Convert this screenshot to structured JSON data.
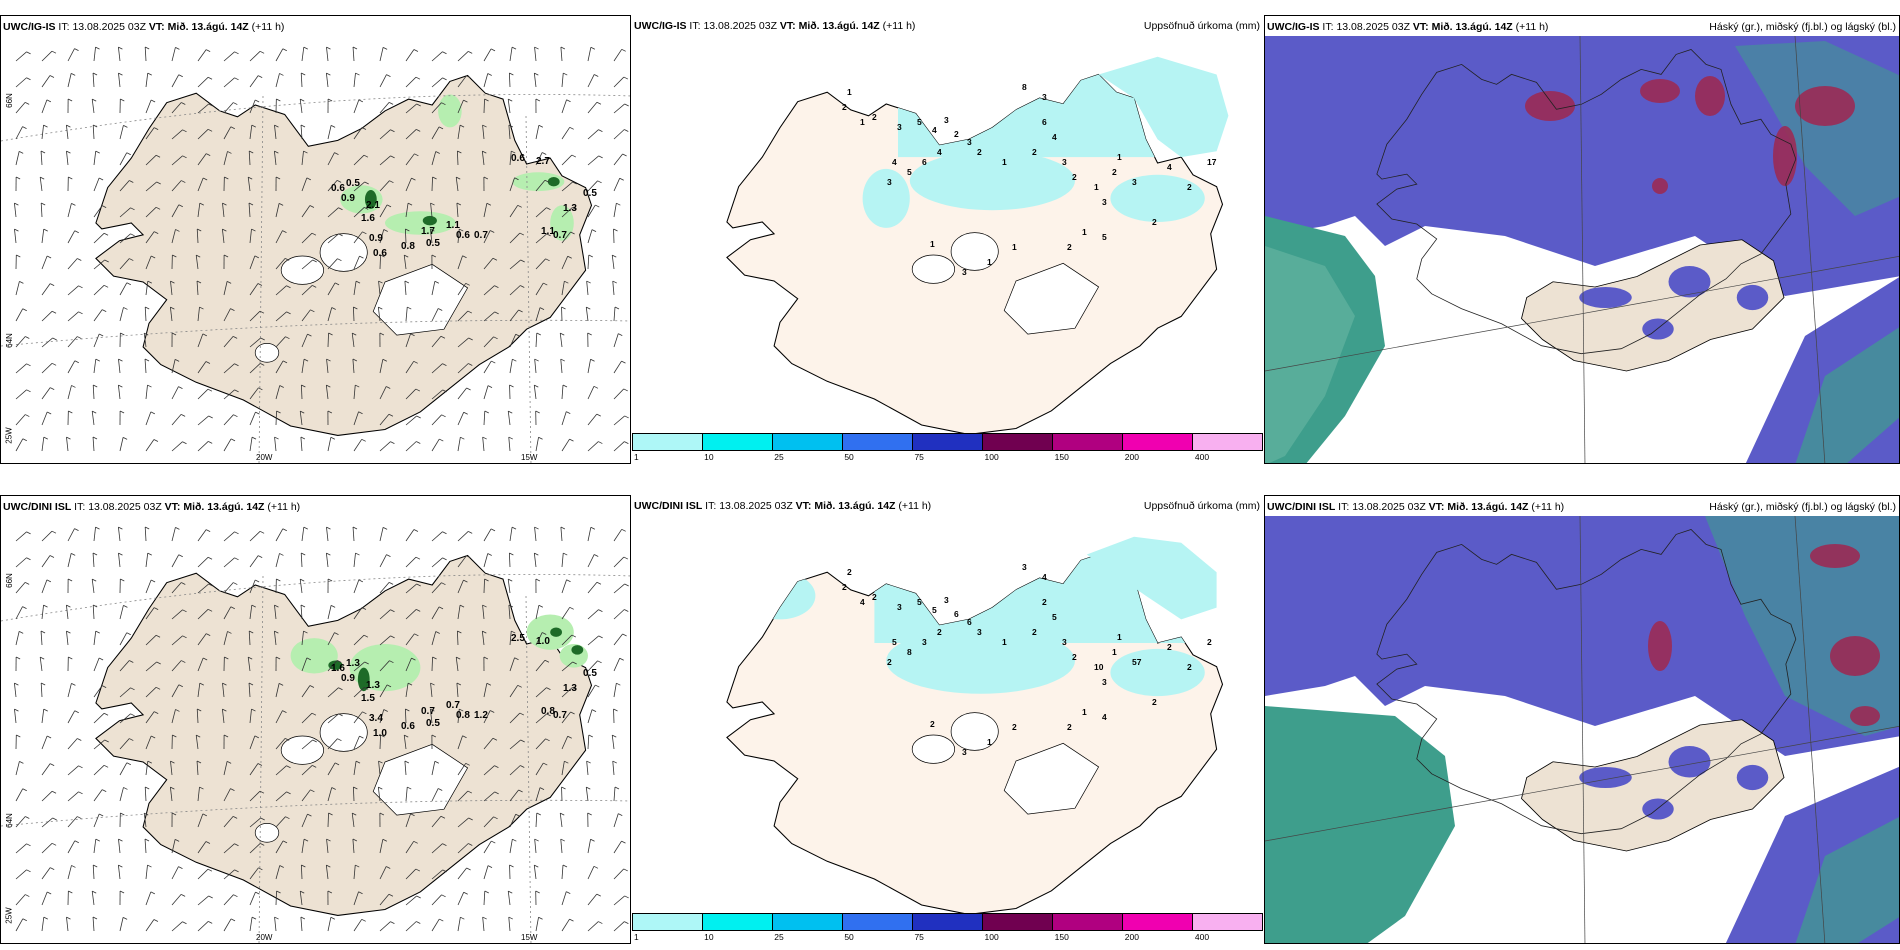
{
  "rows": [
    {
      "model": "UWC/IG-IS",
      "it_label": "IT:",
      "it_value": "13.08.2025 03Z",
      "vt_label": "VT:",
      "vt_value": "Mið. 13.ágú. 14Z",
      "lead": "(+11 h)",
      "wind_labels": [
        "0.6",
        "0.5",
        "0.9",
        "2.1",
        "1.6",
        "0.9",
        "0.6",
        "0.8",
        "0.5",
        "1.7",
        "1.1",
        "0.6",
        "0.7",
        "0.6",
        "2.7",
        "0.5",
        "1.3",
        "1.1",
        "0.7"
      ],
      "precip_labels": [
        "1",
        "2",
        "1",
        "2",
        "3",
        "5",
        "4",
        "3",
        "2",
        "3",
        "2",
        "4",
        "6",
        "5",
        "4",
        "3",
        "8",
        "3",
        "6",
        "4",
        "2",
        "1",
        "3",
        "2",
        "3",
        "2",
        "1",
        "17",
        "4",
        "3",
        "1",
        "2",
        "5",
        "2",
        "1",
        "2",
        "1",
        "1",
        "3",
        "1"
      ]
    },
    {
      "model": "UWC/DINI ISL",
      "it_label": "IT:",
      "it_value": "13.08.2025 03Z",
      "vt_label": "VT:",
      "vt_value": "Mið. 13.ágú. 14Z",
      "lead": "(+11 h)",
      "wind_labels": [
        "1.6",
        "1.3",
        "0.9",
        "1.3",
        "1.5",
        "3.4",
        "1.0",
        "0.6",
        "0.5",
        "0.7",
        "0.7",
        "0.8",
        "1.2",
        "2.5",
        "1.0",
        "0.5",
        "1.3",
        "0.8",
        "0.7"
      ],
      "precip_labels": [
        "2",
        "2",
        "4",
        "2",
        "3",
        "5",
        "5",
        "3",
        "6",
        "6",
        "3",
        "2",
        "3",
        "8",
        "5",
        "2",
        "3",
        "4",
        "2",
        "5",
        "2",
        "1",
        "3",
        "2",
        "3",
        "1",
        "10",
        "2",
        "2",
        "57",
        "1",
        "2",
        "4",
        "2",
        "1",
        "2",
        "2",
        "1",
        "3",
        "2"
      ]
    }
  ],
  "precip_panel_title": "Uppsöfnuð úrkoma (mm)",
  "cloud_panel_title": "Háský (gr.), miðský (fj.bl.) og lágský (bl.)",
  "colorbar": {
    "labels": [
      "1",
      "10",
      "25",
      "50",
      "75",
      "100",
      "150",
      "200",
      "400"
    ],
    "colors": [
      "#aef7f7",
      "#00f0f0",
      "#00c0f0",
      "#3070f0",
      "#2030c0",
      "#700050",
      "#b00080",
      "#f000b0",
      "#f8b0f0"
    ]
  },
  "axis": {
    "lat_labels": [
      "66N",
      "64N",
      "25W"
    ],
    "lat_labels_2": [
      "66N",
      "64N"
    ],
    "lon_labels": [
      "20W",
      "15W"
    ]
  },
  "colors": {
    "land": "#ede2d3",
    "precip_land": "#fdf3ea",
    "precip_light": "#b6f4f3",
    "cloud_high": "#5b5bc8",
    "cloud_mid": "#3e9e8c",
    "cloud_low": "#9b2b55"
  }
}
